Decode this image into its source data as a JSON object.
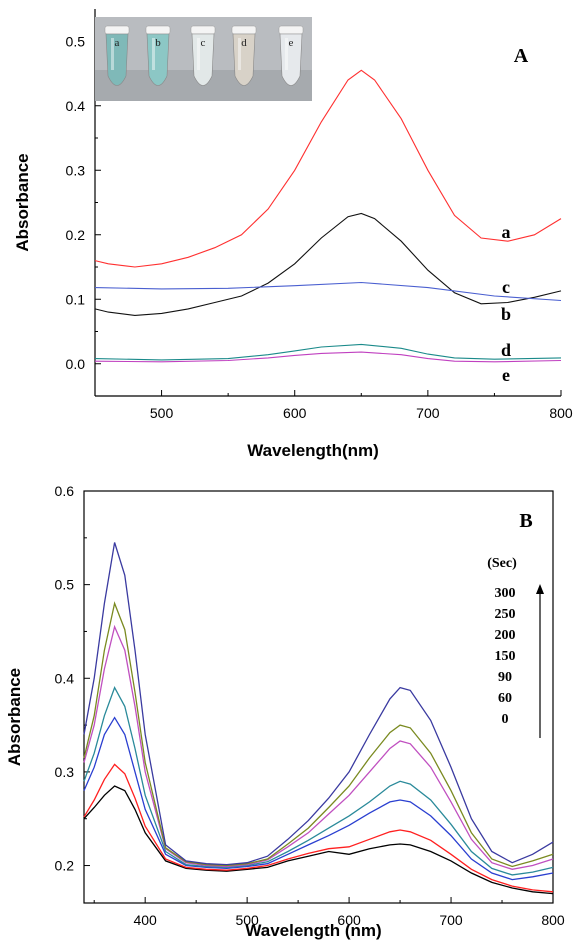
{
  "chart_data": [
    {
      "type": "line",
      "panel": "A",
      "xlabel": "Wavelength(nm)",
      "ylabel": "Absorbance",
      "xlim": [
        450,
        800
      ],
      "ylim": [
        -0.05,
        0.55
      ],
      "xticks": [
        "500",
        "600",
        "700",
        "800"
      ],
      "yticks": [
        "0.0",
        "0.1",
        "0.2",
        "0.3",
        "0.4",
        "0.5"
      ],
      "inset_photo": {
        "tube_labels": [
          "a",
          "b",
          "c",
          "d",
          "e"
        ],
        "tube_colors": [
          "#7fb9b8",
          "#8cc7c5",
          "#e2e8e8",
          "#d8d2c8",
          "#e6e9ec"
        ]
      },
      "series": [
        {
          "name": "a",
          "color": "#ff3030",
          "x": [
            450,
            460,
            480,
            500,
            520,
            540,
            560,
            580,
            600,
            620,
            640,
            650,
            660,
            680,
            700,
            720,
            740,
            760,
            780,
            800
          ],
          "y": [
            0.16,
            0.155,
            0.15,
            0.155,
            0.165,
            0.18,
            0.2,
            0.24,
            0.3,
            0.375,
            0.44,
            0.455,
            0.44,
            0.38,
            0.3,
            0.23,
            0.195,
            0.19,
            0.2,
            0.225
          ]
        },
        {
          "name": "b",
          "color": "#111111",
          "x": [
            450,
            460,
            480,
            500,
            520,
            540,
            560,
            580,
            600,
            620,
            640,
            650,
            660,
            680,
            700,
            720,
            740,
            760,
            780,
            800
          ],
          "y": [
            0.085,
            0.08,
            0.075,
            0.078,
            0.085,
            0.095,
            0.105,
            0.125,
            0.155,
            0.195,
            0.228,
            0.233,
            0.225,
            0.19,
            0.145,
            0.11,
            0.093,
            0.095,
            0.103,
            0.113
          ]
        },
        {
          "name": "c",
          "color": "#4a5fd0",
          "x": [
            450,
            500,
            550,
            600,
            650,
            700,
            750,
            800
          ],
          "y": [
            0.118,
            0.116,
            0.117,
            0.121,
            0.126,
            0.118,
            0.105,
            0.098
          ]
        },
        {
          "name": "d",
          "color": "#1a8a8a",
          "x": [
            450,
            500,
            550,
            580,
            600,
            620,
            650,
            680,
            700,
            720,
            750,
            800
          ],
          "y": [
            0.008,
            0.006,
            0.008,
            0.014,
            0.02,
            0.026,
            0.03,
            0.024,
            0.015,
            0.009,
            0.007,
            0.009
          ]
        },
        {
          "name": "e",
          "color": "#c040c0",
          "x": [
            450,
            500,
            550,
            580,
            600,
            620,
            650,
            680,
            700,
            720,
            750,
            800
          ],
          "y": [
            0.004,
            0.003,
            0.005,
            0.009,
            0.013,
            0.016,
            0.018,
            0.014,
            0.008,
            0.004,
            0.003,
            0.005
          ]
        }
      ]
    },
    {
      "type": "line",
      "panel": "B",
      "xlabel": "Wavelength (nm)",
      "ylabel": "Absorbance",
      "xlim": [
        340,
        800
      ],
      "ylim": [
        0.16,
        0.6
      ],
      "xticks": [
        "400",
        "500",
        "600",
        "700",
        "800"
      ],
      "yticks": [
        "0.2",
        "0.3",
        "0.4",
        "0.5",
        "0.6"
      ],
      "legend_title": "(Sec)",
      "legend_entries": [
        "300",
        "250",
        "200",
        "150",
        "90",
        "60",
        "0"
      ],
      "series": [
        {
          "name": "0",
          "color": "#000000",
          "x": [
            340,
            350,
            360,
            370,
            380,
            390,
            400,
            420,
            440,
            460,
            480,
            500,
            520,
            540,
            560,
            580,
            600,
            620,
            640,
            650,
            660,
            680,
            700,
            720,
            740,
            760,
            780,
            800
          ],
          "y": [
            0.25,
            0.262,
            0.275,
            0.285,
            0.28,
            0.26,
            0.235,
            0.205,
            0.197,
            0.195,
            0.194,
            0.196,
            0.198,
            0.205,
            0.21,
            0.215,
            0.212,
            0.218,
            0.222,
            0.223,
            0.222,
            0.215,
            0.205,
            0.192,
            0.182,
            0.176,
            0.172,
            0.17
          ]
        },
        {
          "name": "60",
          "color": "#ff2020",
          "x": [
            340,
            350,
            360,
            370,
            380,
            390,
            400,
            420,
            440,
            460,
            480,
            500,
            520,
            540,
            560,
            580,
            600,
            620,
            640,
            650,
            660,
            680,
            700,
            720,
            740,
            760,
            780,
            800
          ],
          "y": [
            0.252,
            0.27,
            0.292,
            0.308,
            0.298,
            0.272,
            0.242,
            0.207,
            0.198,
            0.196,
            0.195,
            0.197,
            0.2,
            0.207,
            0.213,
            0.218,
            0.22,
            0.228,
            0.236,
            0.238,
            0.236,
            0.227,
            0.212,
            0.196,
            0.185,
            0.178,
            0.174,
            0.172
          ]
        },
        {
          "name": "90",
          "color": "#2a3fd0",
          "x": [
            340,
            350,
            360,
            370,
            380,
            390,
            400,
            420,
            440,
            460,
            480,
            500,
            520,
            540,
            560,
            580,
            600,
            620,
            640,
            650,
            660,
            680,
            700,
            720,
            740,
            760,
            780,
            800
          ],
          "y": [
            0.28,
            0.305,
            0.34,
            0.358,
            0.34,
            0.3,
            0.26,
            0.212,
            0.2,
            0.198,
            0.197,
            0.199,
            0.202,
            0.212,
            0.222,
            0.232,
            0.243,
            0.256,
            0.268,
            0.27,
            0.268,
            0.253,
            0.232,
            0.207,
            0.192,
            0.185,
            0.188,
            0.192
          ]
        },
        {
          "name": "150",
          "color": "#2a8a9a",
          "x": [
            340,
            350,
            360,
            370,
            380,
            390,
            400,
            420,
            440,
            460,
            480,
            500,
            520,
            540,
            560,
            580,
            600,
            620,
            640,
            650,
            660,
            680,
            700,
            720,
            740,
            760,
            780,
            800
          ],
          "y": [
            0.29,
            0.32,
            0.36,
            0.39,
            0.37,
            0.325,
            0.275,
            0.215,
            0.201,
            0.199,
            0.198,
            0.2,
            0.204,
            0.215,
            0.227,
            0.24,
            0.253,
            0.268,
            0.285,
            0.29,
            0.287,
            0.27,
            0.244,
            0.215,
            0.197,
            0.19,
            0.193,
            0.198
          ]
        },
        {
          "name": "200",
          "color": "#c050c0",
          "x": [
            340,
            350,
            360,
            370,
            380,
            390,
            400,
            420,
            440,
            460,
            480,
            500,
            520,
            540,
            560,
            580,
            600,
            620,
            640,
            650,
            660,
            680,
            700,
            720,
            740,
            760,
            780,
            800
          ],
          "y": [
            0.31,
            0.35,
            0.41,
            0.455,
            0.43,
            0.37,
            0.3,
            0.218,
            0.203,
            0.2,
            0.199,
            0.201,
            0.206,
            0.22,
            0.235,
            0.255,
            0.275,
            0.3,
            0.325,
            0.333,
            0.33,
            0.305,
            0.268,
            0.228,
            0.203,
            0.196,
            0.2,
            0.207
          ]
        },
        {
          "name": "250",
          "color": "#7a8a20",
          "x": [
            340,
            350,
            360,
            370,
            380,
            390,
            400,
            420,
            440,
            460,
            480,
            500,
            520,
            540,
            560,
            580,
            600,
            620,
            640,
            650,
            660,
            680,
            700,
            720,
            740,
            760,
            780,
            800
          ],
          "y": [
            0.315,
            0.36,
            0.43,
            0.48,
            0.452,
            0.385,
            0.31,
            0.219,
            0.204,
            0.201,
            0.2,
            0.202,
            0.207,
            0.223,
            0.24,
            0.262,
            0.285,
            0.315,
            0.342,
            0.35,
            0.347,
            0.32,
            0.28,
            0.235,
            0.207,
            0.199,
            0.205,
            0.212
          ]
        },
        {
          "name": "300",
          "color": "#3a3aa0",
          "x": [
            340,
            350,
            360,
            370,
            380,
            390,
            400,
            420,
            440,
            460,
            480,
            500,
            520,
            540,
            560,
            580,
            600,
            620,
            640,
            650,
            660,
            680,
            700,
            720,
            740,
            760,
            780,
            800
          ],
          "y": [
            0.34,
            0.4,
            0.48,
            0.545,
            0.51,
            0.43,
            0.34,
            0.222,
            0.205,
            0.202,
            0.201,
            0.203,
            0.21,
            0.228,
            0.248,
            0.272,
            0.3,
            0.34,
            0.378,
            0.39,
            0.387,
            0.355,
            0.305,
            0.25,
            0.215,
            0.203,
            0.212,
            0.225
          ]
        }
      ]
    }
  ]
}
